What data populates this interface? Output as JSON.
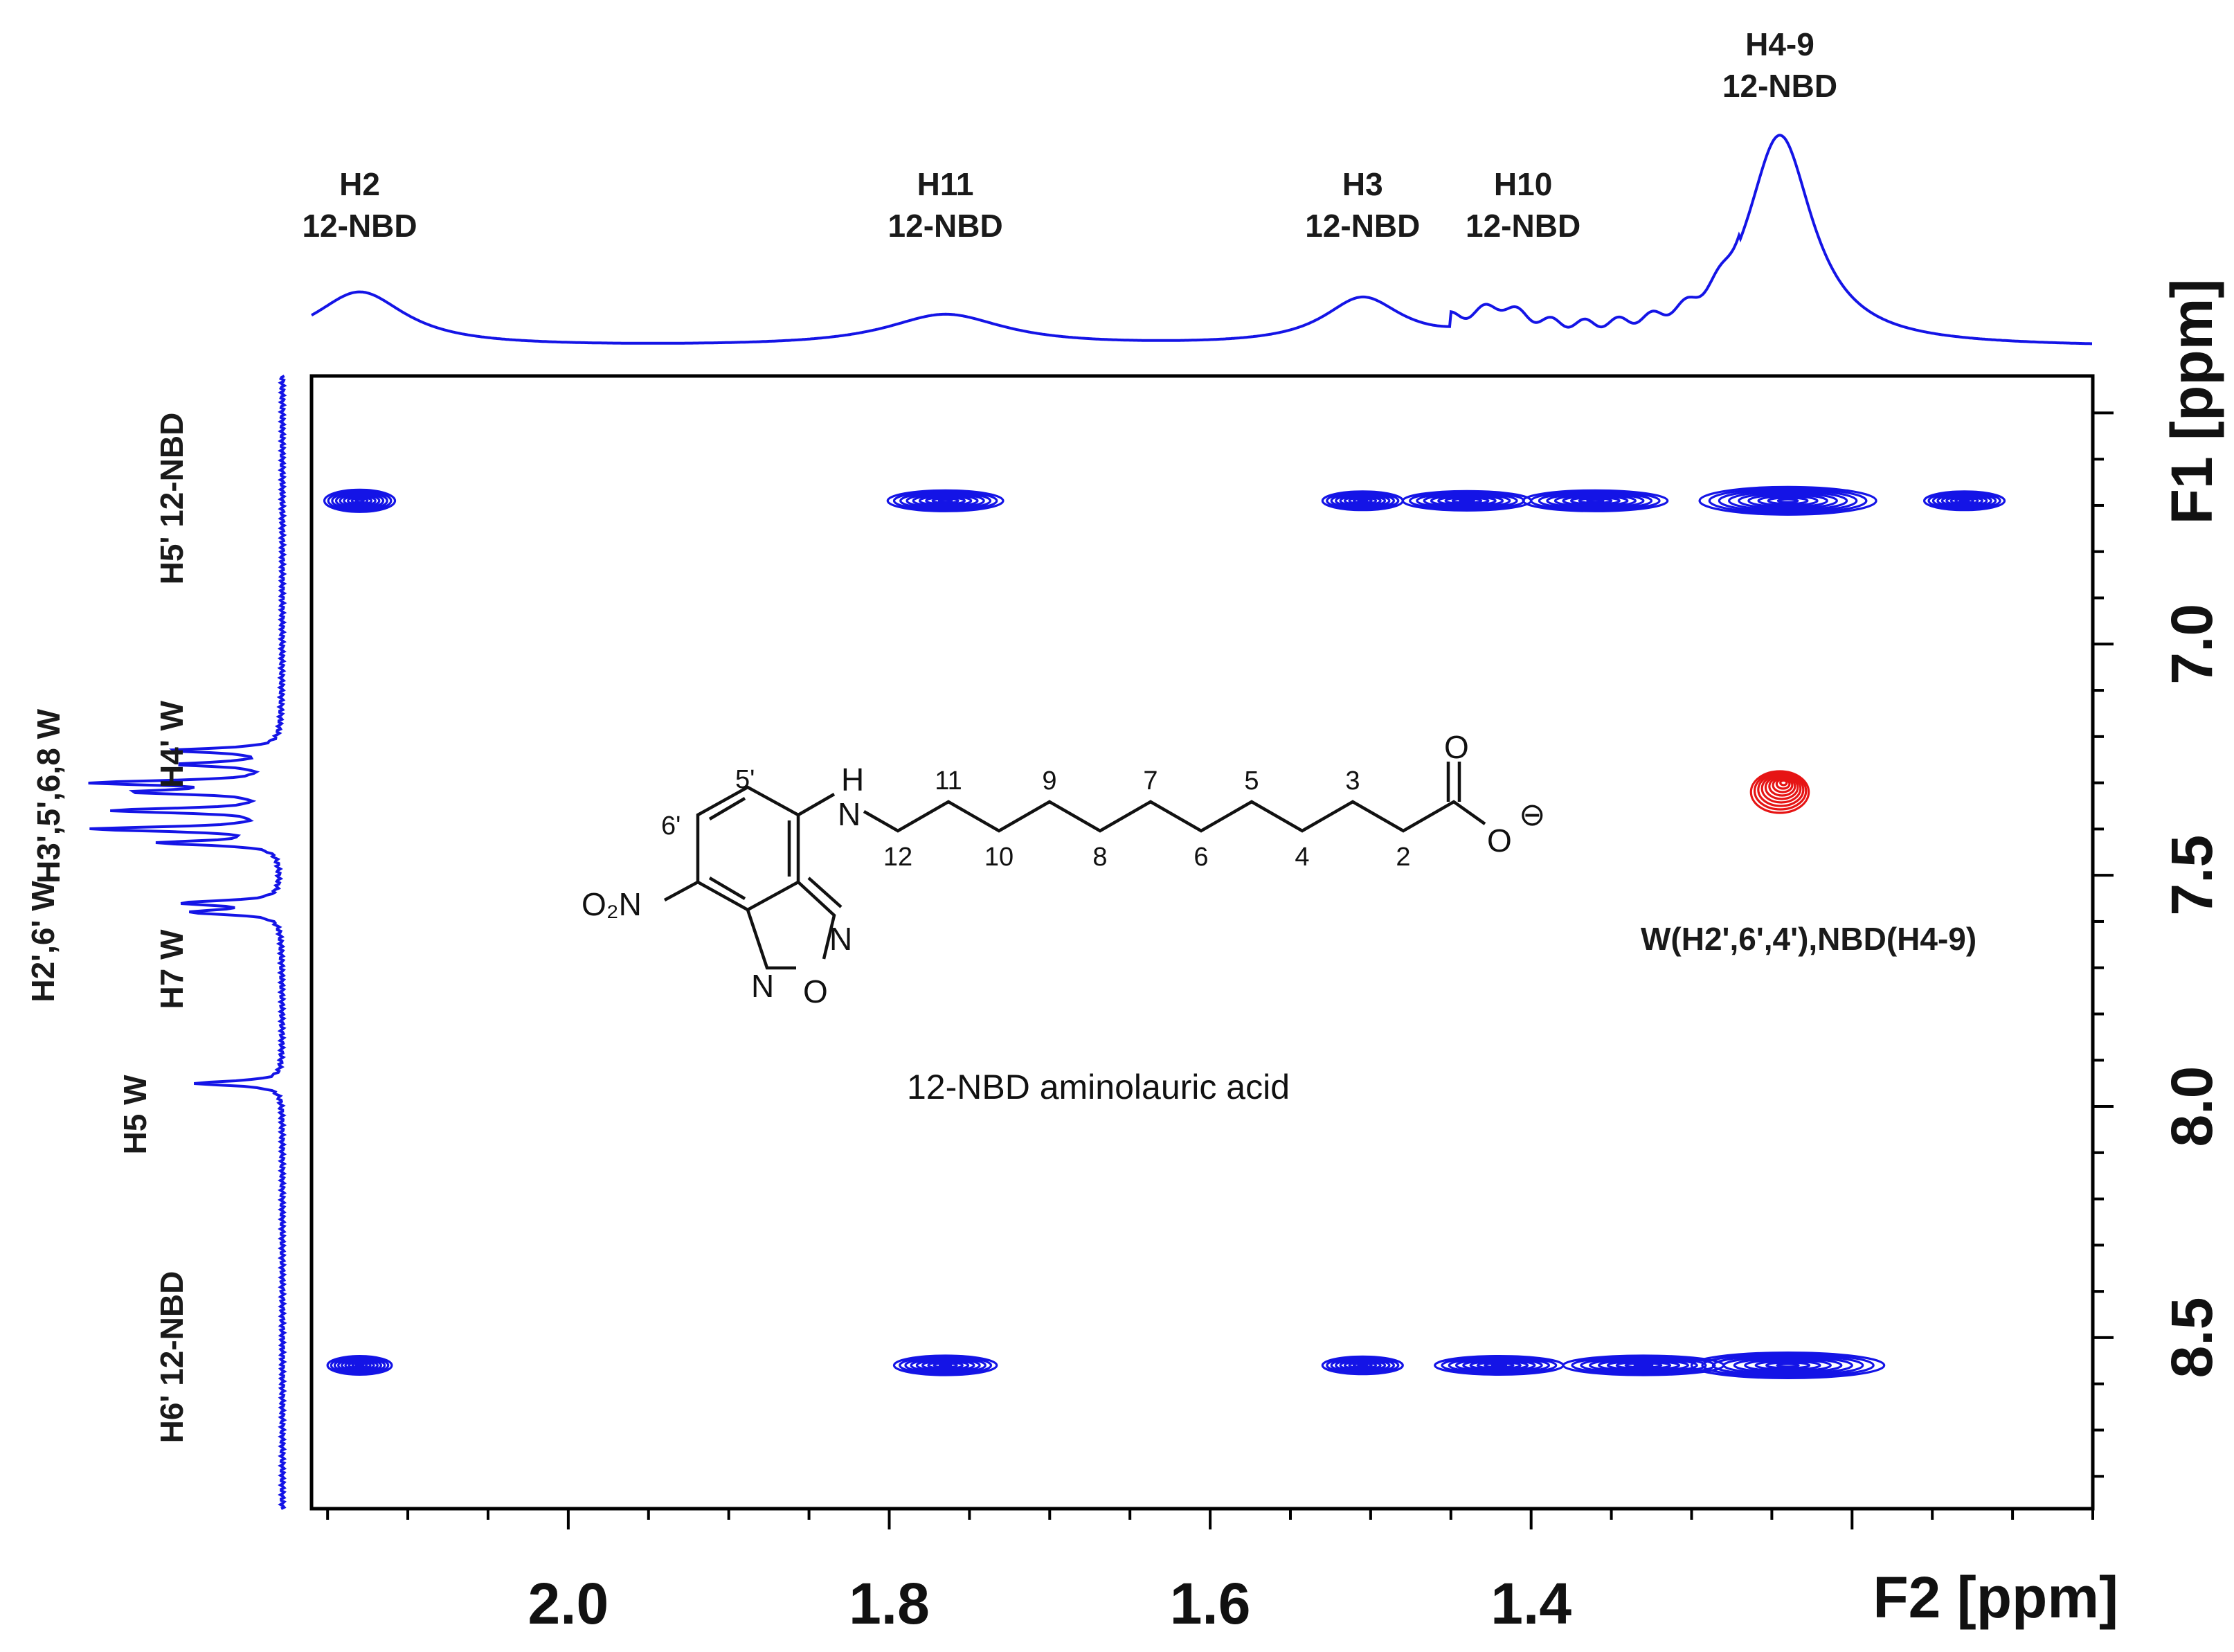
{
  "chart_data": {
    "type": "heatmap",
    "subtype": "2D NMR NOESY contour plot",
    "colors": {
      "frame": "#000000",
      "projection": "#1414e6",
      "positive_contour": "#1414e6",
      "negative_contour": "#e61414"
    },
    "x_axis": {
      "title": "F2 [ppm]",
      "range": [
        2.16,
        1.05
      ],
      "reversed": true,
      "ticks": [
        2.0,
        1.8,
        1.6,
        1.4
      ],
      "tick_labels": [
        "2.0",
        "1.8",
        "1.6",
        "1.4"
      ],
      "minor_step": 0.05
    },
    "y_axis": {
      "title": "F1 [ppm]",
      "range": [
        6.42,
        8.87
      ],
      "reversed": true,
      "ticks": [
        7.0,
        7.5,
        8.0,
        8.5
      ],
      "tick_labels": [
        "7.0",
        "7.5",
        "8.0",
        "8.5"
      ],
      "minor_step": 0.1
    },
    "f2_projection_peaks": [
      {
        "ppm": 2.13,
        "height": 0.26,
        "width": 0.035
      },
      {
        "ppm": 1.765,
        "height": 0.15,
        "width": 0.045
      },
      {
        "ppm": 1.505,
        "height": 0.22,
        "width": 0.03
      },
      {
        "ppm": 1.42,
        "height": 0.1,
        "width": 0.02
      },
      {
        "ppm": 1.245,
        "height": 1.0,
        "width": 0.025
      }
    ],
    "f2_labels": [
      {
        "line1": "H2",
        "line2": "12-NBD",
        "ppm": 2.13
      },
      {
        "line1": "H11",
        "line2": "12-NBD",
        "ppm": 1.765
      },
      {
        "line1": "H3",
        "line2": "12-NBD",
        "ppm": 1.505
      },
      {
        "line1": "H10",
        "line2": "12-NBD",
        "ppm": 1.405
      },
      {
        "line1": "H4-9",
        "line2": "12-NBD",
        "ppm": 1.245
      }
    ],
    "f1_projection_peaks": [
      {
        "ppm": 7.23,
        "height": 0.55
      },
      {
        "ppm": 7.26,
        "height": 0.5
      },
      {
        "ppm": 7.3,
        "height": 0.92
      },
      {
        "ppm": 7.32,
        "height": 0.7
      },
      {
        "ppm": 7.36,
        "height": 0.85
      },
      {
        "ppm": 7.4,
        "height": 0.95
      },
      {
        "ppm": 7.43,
        "height": 0.6
      },
      {
        "ppm": 7.56,
        "height": 0.5
      },
      {
        "ppm": 7.58,
        "height": 0.45
      },
      {
        "ppm": 7.95,
        "height": 0.45
      }
    ],
    "f1_labels": [
      {
        "text": "H5' 12-NBD",
        "ppm": 6.65,
        "column": 1
      },
      {
        "text": "H4' W",
        "ppm": 7.05,
        "column": 1
      },
      {
        "text": "H3',5',6,8 W",
        "ppm": 6.95,
        "column": 0
      },
      {
        "text": "H2',6' W",
        "ppm": 7.55,
        "column": 0
      },
      {
        "text": "H7 W",
        "ppm": 7.6,
        "column": 1
      },
      {
        "text": "H5 W",
        "ppm": 7.97,
        "column": 0
      },
      {
        "text": "H6' 12-NBD",
        "ppm": 8.6,
        "column": 1
      }
    ],
    "cross_peaks": [
      {
        "f2": 2.13,
        "f1": 6.69,
        "width": 0.022,
        "height": 0.048,
        "sign": "positive"
      },
      {
        "f2": 1.765,
        "f1": 6.69,
        "width": 0.036,
        "height": 0.045,
        "sign": "positive"
      },
      {
        "f2": 1.505,
        "f1": 6.69,
        "width": 0.025,
        "height": 0.04,
        "sign": "positive"
      },
      {
        "f2": 1.44,
        "f1": 6.69,
        "width": 0.04,
        "height": 0.042,
        "sign": "positive"
      },
      {
        "f2": 1.36,
        "f1": 6.69,
        "width": 0.045,
        "height": 0.045,
        "sign": "positive"
      },
      {
        "f2": 1.24,
        "f1": 6.69,
        "width": 0.055,
        "height": 0.06,
        "sign": "positive"
      },
      {
        "f2": 1.13,
        "f1": 6.69,
        "width": 0.025,
        "height": 0.04,
        "sign": "positive"
      },
      {
        "f2": 2.13,
        "f1": 8.56,
        "width": 0.02,
        "height": 0.04,
        "sign": "positive"
      },
      {
        "f2": 1.765,
        "f1": 8.56,
        "width": 0.032,
        "height": 0.042,
        "sign": "positive"
      },
      {
        "f2": 1.505,
        "f1": 8.56,
        "width": 0.025,
        "height": 0.038,
        "sign": "positive"
      },
      {
        "f2": 1.42,
        "f1": 8.56,
        "width": 0.04,
        "height": 0.04,
        "sign": "positive"
      },
      {
        "f2": 1.33,
        "f1": 8.56,
        "width": 0.05,
        "height": 0.042,
        "sign": "positive"
      },
      {
        "f2": 1.24,
        "f1": 8.56,
        "width": 0.06,
        "height": 0.055,
        "sign": "positive"
      },
      {
        "f2": 1.245,
        "f1": 7.32,
        "width": 0.018,
        "height": 0.09,
        "sign": "negative"
      }
    ],
    "annotations": {
      "negative_peak_label": "W(H2',6',4'),NBD(H4-9)",
      "compound_name": "12-NBD aminolauric acid"
    },
    "structure_labels": {
      "nh_h": "H",
      "nh_n": "N",
      "carbonyl_o": "O",
      "carboxylate_o": "O",
      "charge": "⊖",
      "nitro": "O₂N",
      "ring_n_right": "N",
      "ring_n_bottom": "N",
      "ring_o": "O",
      "pos_5": "5'",
      "pos_6": "6'",
      "chain_up": [
        "11",
        "9",
        "7",
        "5",
        "3"
      ],
      "chain_down": [
        "12",
        "10",
        "8",
        "6",
        "4",
        "2"
      ]
    }
  }
}
